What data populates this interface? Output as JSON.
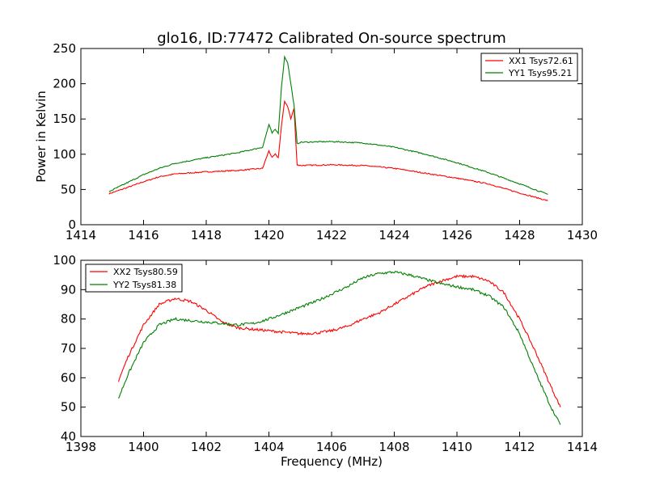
{
  "title": "glo16, ID:77472 Calibrated On-source spectrum",
  "colors": {
    "red": "#ff0000",
    "green": "#008000"
  },
  "chart_data": [
    {
      "type": "line",
      "ylabel": "Power in Kelvin",
      "xlabel": "",
      "xlim": [
        1414,
        1430
      ],
      "ylim": [
        0,
        250
      ],
      "xticks": [
        1414,
        1416,
        1418,
        1420,
        1422,
        1424,
        1426,
        1428,
        1430
      ],
      "yticks": [
        0,
        50,
        100,
        150,
        200,
        250
      ],
      "legend_position": "top-right",
      "series": [
        {
          "name": "XX1 Tsys72.61",
          "color": "#ff0000",
          "x": [
            1414.9,
            1415.5,
            1416.0,
            1416.5,
            1417.0,
            1418.0,
            1419.0,
            1419.8,
            1420.0,
            1420.1,
            1420.2,
            1420.3,
            1420.4,
            1420.5,
            1420.6,
            1420.7,
            1420.8,
            1420.9,
            1421.0,
            1422.0,
            1423.0,
            1424.0,
            1425.0,
            1426.0,
            1427.0,
            1428.0,
            1428.9
          ],
          "y": [
            44,
            53,
            61,
            68,
            72,
            75,
            77,
            80,
            105,
            95,
            100,
            95,
            140,
            175,
            168,
            150,
            165,
            85,
            84,
            85,
            84,
            80,
            73,
            66,
            58,
            45,
            34
          ]
        },
        {
          "name": "YY1 Tsys95.21",
          "color": "#008000",
          "x": [
            1414.9,
            1415.5,
            1416.0,
            1416.5,
            1417.0,
            1418.0,
            1419.0,
            1419.8,
            1420.0,
            1420.1,
            1420.2,
            1420.3,
            1420.4,
            1420.5,
            1420.6,
            1420.7,
            1420.8,
            1420.9,
            1421.0,
            1422.0,
            1423.0,
            1424.0,
            1425.0,
            1426.0,
            1427.0,
            1428.0,
            1428.9
          ],
          "y": [
            47,
            60,
            71,
            80,
            87,
            95,
            102,
            110,
            142,
            130,
            135,
            130,
            195,
            238,
            230,
            200,
            170,
            115,
            117,
            118,
            116,
            110,
            100,
            88,
            74,
            58,
            43
          ]
        }
      ]
    },
    {
      "type": "line",
      "ylabel": "",
      "xlabel": "Frequency (MHz)",
      "xlim": [
        1398,
        1414
      ],
      "ylim": [
        40,
        100
      ],
      "xticks": [
        1398,
        1400,
        1402,
        1404,
        1406,
        1408,
        1410,
        1412,
        1414
      ],
      "yticks": [
        40,
        50,
        60,
        70,
        80,
        90,
        100
      ],
      "legend_position": "top-left",
      "series": [
        {
          "name": "XX2 Tsys80.59",
          "color": "#ff0000",
          "x": [
            1399.2,
            1399.5,
            1400.0,
            1400.5,
            1401.0,
            1401.5,
            1402.0,
            1402.5,
            1403.0,
            1403.5,
            1404.0,
            1404.5,
            1405.0,
            1405.5,
            1406.0,
            1406.5,
            1407.0,
            1407.5,
            1408.0,
            1408.5,
            1409.0,
            1409.5,
            1410.0,
            1410.5,
            1411.0,
            1411.5,
            1412.0,
            1412.5,
            1413.0,
            1413.3
          ],
          "y": [
            59,
            67,
            78,
            85,
            87,
            86,
            83,
            79,
            77,
            76.5,
            76,
            75.5,
            75,
            75.2,
            76,
            77.5,
            80,
            82,
            85,
            88,
            91,
            93,
            94.5,
            94.5,
            93,
            89,
            80,
            69,
            57,
            50
          ]
        },
        {
          "name": "YY2 Tsys81.38",
          "color": "#008000",
          "x": [
            1399.2,
            1399.5,
            1400.0,
            1400.5,
            1401.0,
            1401.5,
            1402.0,
            1402.5,
            1403.0,
            1403.5,
            1404.0,
            1404.5,
            1405.0,
            1405.5,
            1406.0,
            1406.5,
            1407.0,
            1407.5,
            1408.0,
            1408.5,
            1409.0,
            1409.5,
            1410.0,
            1410.5,
            1411.0,
            1411.5,
            1412.0,
            1412.5,
            1413.0,
            1413.3
          ],
          "y": [
            53,
            61,
            72,
            78,
            80,
            79.5,
            79,
            78.5,
            78,
            78.5,
            80,
            82,
            84,
            86,
            88.5,
            91,
            94,
            95.5,
            96,
            95,
            93.5,
            92,
            91,
            90,
            88,
            84,
            75,
            62,
            50,
            44
          ]
        }
      ]
    }
  ]
}
